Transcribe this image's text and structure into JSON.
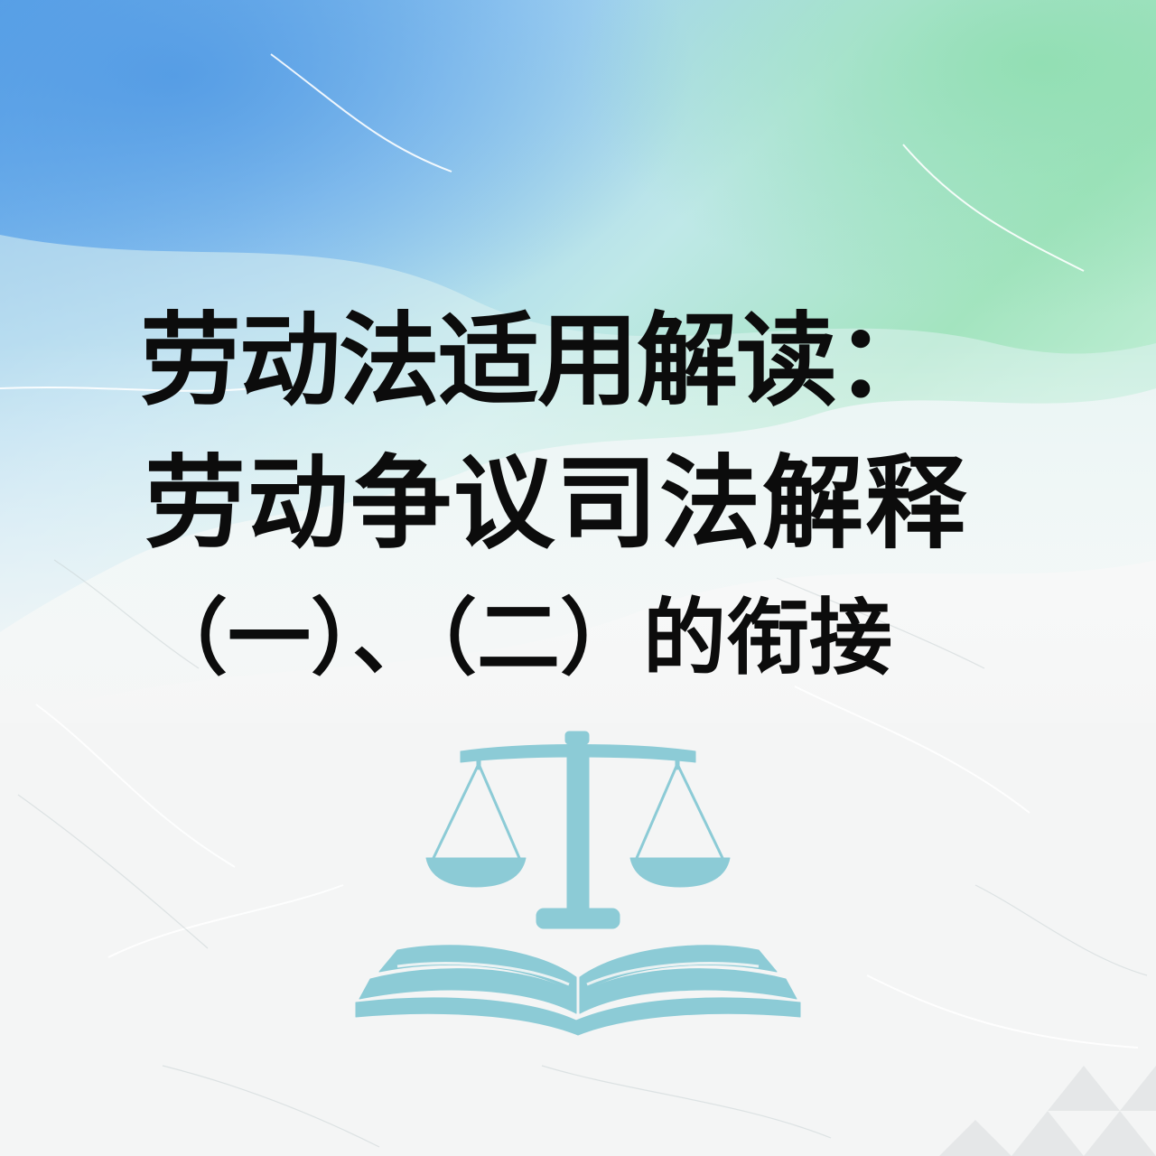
{
  "poster": {
    "title_line1": "劳动法适用解读：",
    "title_line2": "劳动争议司法解释",
    "title_line3": "（一）、（二）的衔接"
  },
  "colors": {
    "ink": "#0c0c0c",
    "emblem": "#8ccbd6",
    "wash_blue": "#6fb3ec",
    "wash_green": "#a6e6c2"
  },
  "icons": {
    "emblem": "scales-of-justice-on-open-book-icon"
  }
}
